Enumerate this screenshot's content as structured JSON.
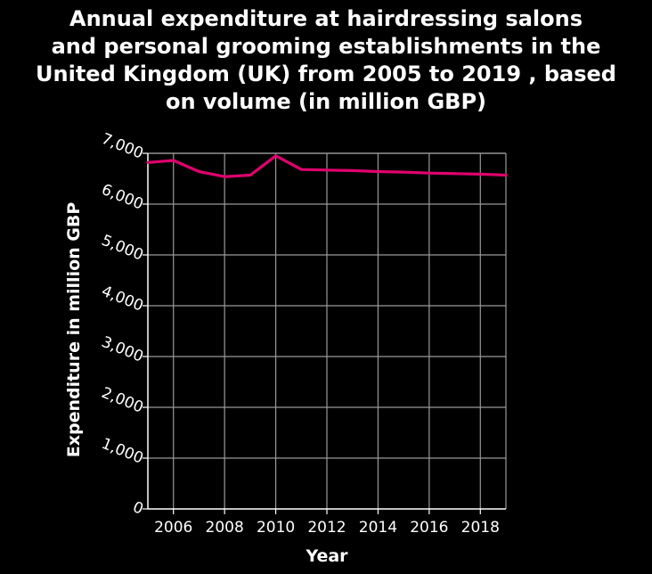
{
  "chart_data": {
    "type": "line",
    "title": "Annual expenditure at hairdressing salons\nand personal grooming establishments in the\nUnited Kingdom (UK) from 2005 to 2019 , based\non volume (in million GBP)",
    "xlabel": "Year",
    "ylabel": "Expenditure in million GBP",
    "xlim": [
      2005,
      2019
    ],
    "ylim": [
      0,
      7000
    ],
    "x_ticks": [
      2006,
      2008,
      2010,
      2012,
      2014,
      2016,
      2018
    ],
    "x_tick_labels": [
      "2006",
      "2008",
      "2010",
      "2012",
      "2014",
      "2016",
      "2018"
    ],
    "y_ticks": [
      0,
      1000,
      2000,
      3000,
      4000,
      5000,
      6000,
      7000
    ],
    "y_tick_labels": [
      "0",
      "1,000",
      "2,000",
      "3,000",
      "4,000",
      "5,000",
      "6,000",
      "7,000"
    ],
    "grid": true,
    "legend": "none",
    "series": [
      {
        "color": "#e0006e",
        "x": [
          2005,
          2006,
          2007,
          2008,
          2009,
          2010,
          2011,
          2012,
          2013,
          2014,
          2015,
          2016,
          2017,
          2018,
          2019
        ],
        "values": [
          6820,
          6860,
          6640,
          6540,
          6570,
          6950,
          6680,
          6670,
          6660,
          6640,
          6630,
          6610,
          6600,
          6590,
          6570
        ]
      }
    ],
    "colors": {
      "background": "#000000",
      "grid": "#9a9a9a",
      "axis": "#ffffff",
      "text": "#ffffff"
    }
  }
}
